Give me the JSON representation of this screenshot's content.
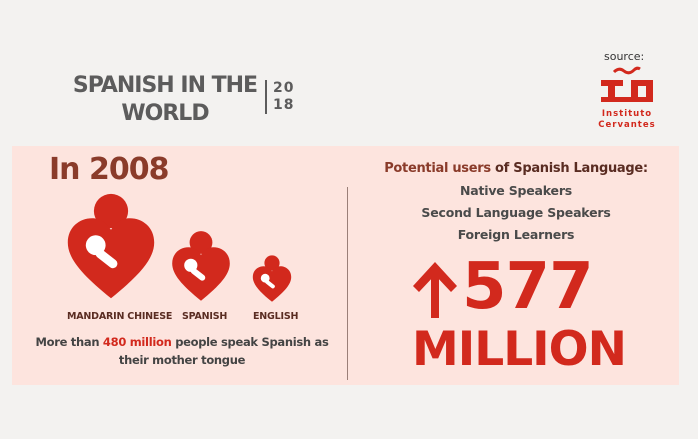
{
  "title": {
    "line1": "SPANISH IN THE",
    "line2": "WORLD"
  },
  "year": {
    "top": "20",
    "bottom": "18"
  },
  "source": {
    "label": "source:",
    "org_line1": "Instituto",
    "org_line2": "Cervantes"
  },
  "left_panel": {
    "heading": "In 2008",
    "figures": [
      {
        "label": "MANDARIN CHINESE",
        "icon": "heart-hug-icon"
      },
      {
        "label": "SPANISH",
        "icon": "heart-hug-icon"
      },
      {
        "label": "ENGLISH",
        "icon": "heart-hug-icon"
      }
    ],
    "desc_pre": "More than ",
    "desc_highlight": "480 million",
    "desc_post": " people speak Spanish as their mother tongue"
  },
  "right_panel": {
    "title_highlight": "Potential users",
    "title_rest": " of Spanish Language:",
    "items": [
      "Native Speakers",
      "Second Language Speakers",
      "Foreign Learners"
    ],
    "number": "577",
    "unit": "MILLION",
    "arrow_icon": "up-arrow-icon"
  },
  "colors": {
    "accent": "#d2291d",
    "panel": "#fde4de",
    "brown": "#5a2c22",
    "background": "#f3f2f0"
  }
}
